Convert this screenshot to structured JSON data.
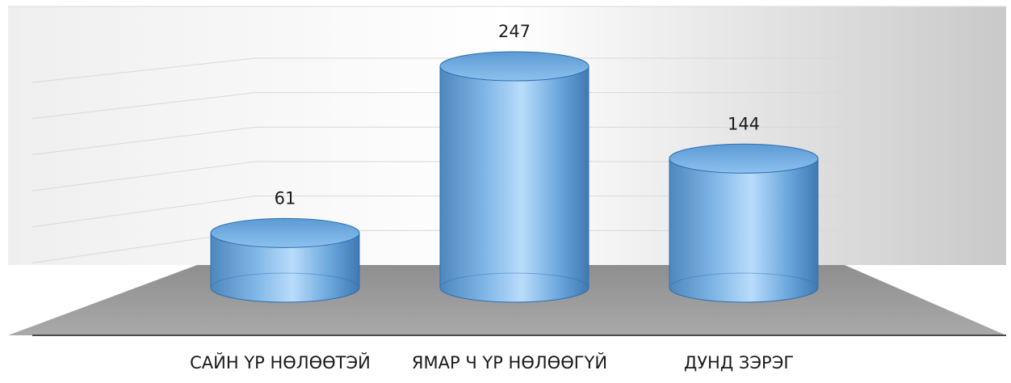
{
  "chart_data": {
    "type": "bar",
    "bar_shape": "3d-cylinder",
    "categories": [
      "САЙН ҮР НӨЛӨӨТЭЙ",
      "ЯМАР Ч ҮР НӨЛӨӨГҮЙ",
      "ДУНД ЗЭРЭГ"
    ],
    "series": [
      {
        "values": [
          61,
          247,
          144
        ]
      }
    ],
    "data_labels": [
      "61",
      "247",
      "144"
    ],
    "title": "",
    "xlabel": "",
    "ylabel": "",
    "ylim": [
      0,
      300
    ],
    "grid": true,
    "legend": "none",
    "colors": {
      "bar_fill": "#6aa7dc",
      "bar_highlight": "#b9dcfb",
      "bar_edge": "#2f6fb0",
      "floor": "#9a9a9a",
      "wall": "#e6e6e6",
      "gridline": "#d8d8d8"
    }
  }
}
